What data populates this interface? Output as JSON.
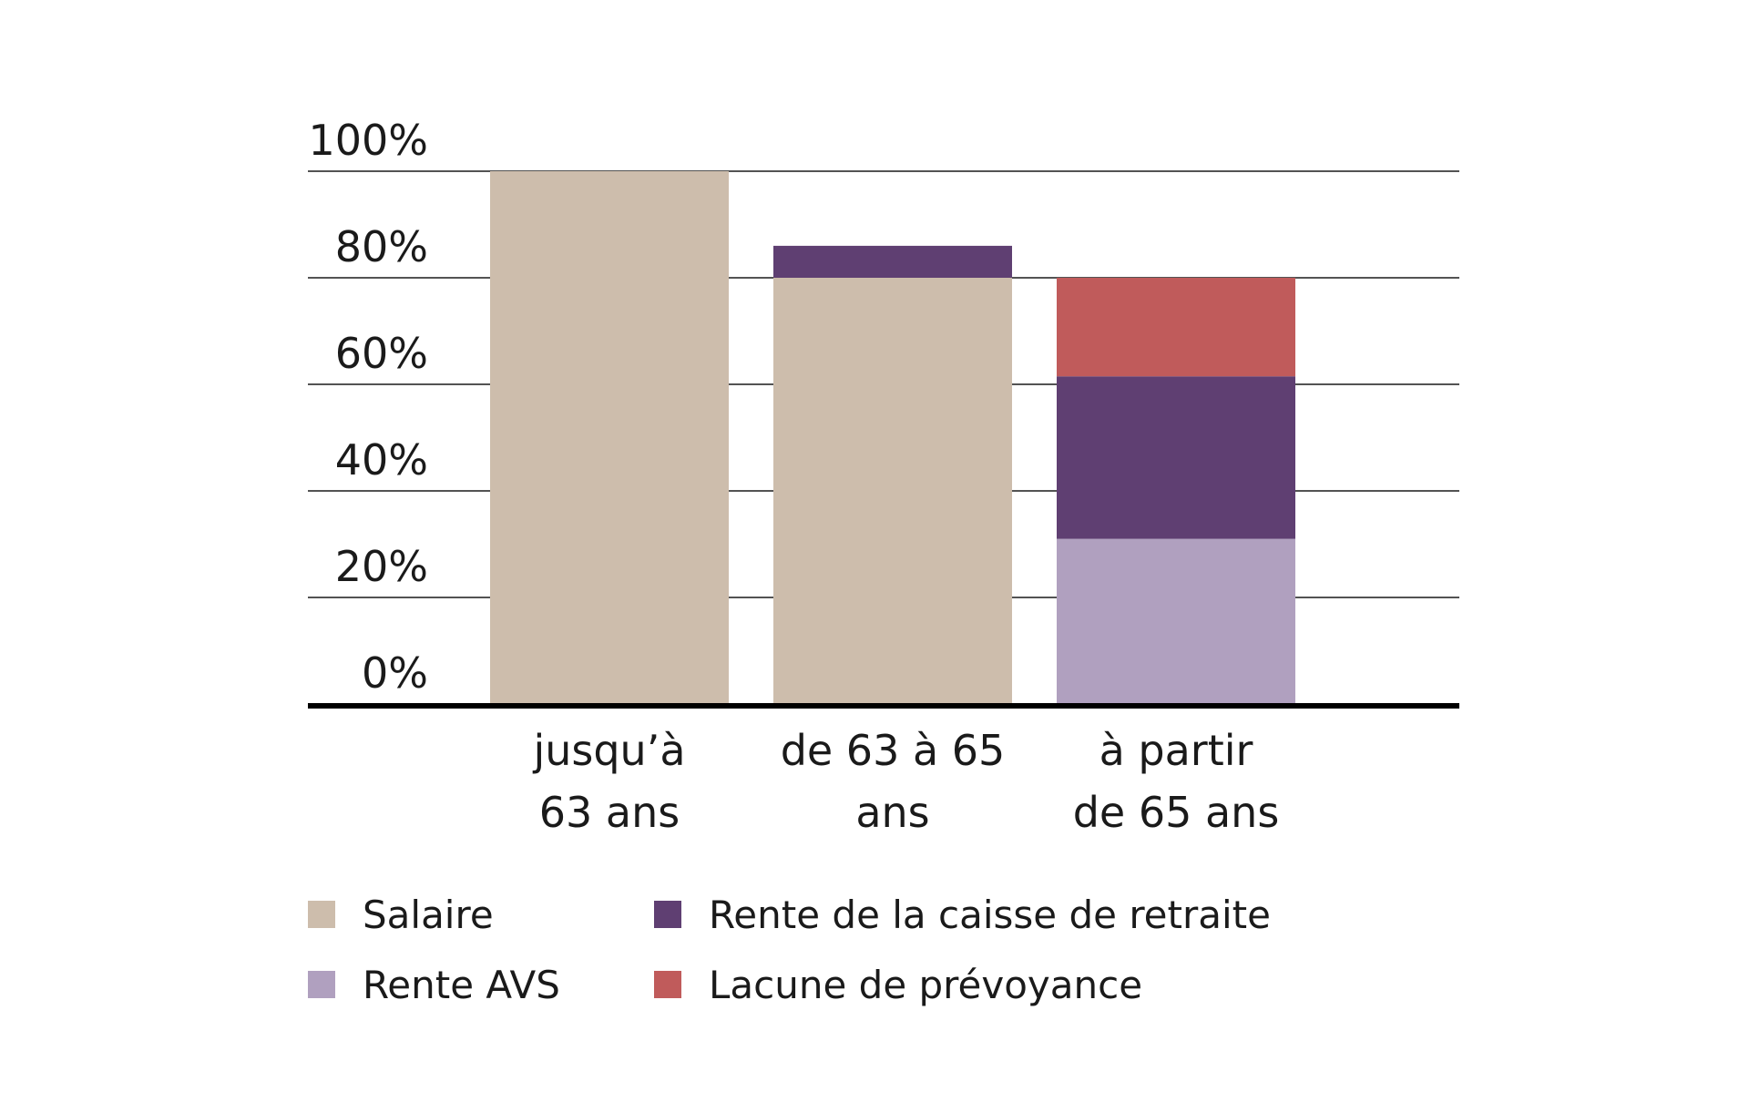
{
  "chart_data": {
    "type": "bar",
    "stacked": true,
    "categories": [
      [
        "jusqu’à",
        "63 ans"
      ],
      [
        "de 63 à 65",
        "ans"
      ],
      [
        "à partir",
        "de 65 ans"
      ]
    ],
    "series": [
      {
        "name": "Salaire",
        "color": "#cdbdac",
        "values": [
          100,
          80,
          0
        ]
      },
      {
        "name": "Rente AVS",
        "color": "#b0a0bf",
        "values": [
          0,
          0,
          31
        ]
      },
      {
        "name": "Rente de la caisse de retraite",
        "color": "#5f3f72",
        "values": [
          0,
          6,
          30.5
        ]
      },
      {
        "name": "Lacune de prévoyance",
        "color": "#c05b5b",
        "values": [
          0,
          0,
          18.5
        ]
      }
    ],
    "yticks": [
      "0%",
      "20%",
      "40%",
      "60%",
      "80%",
      "100%"
    ],
    "ylim": [
      0,
      100
    ],
    "grid": true,
    "legend_position": "bottom",
    "legend_order": [
      "Salaire",
      "Rente de la caisse de retraite",
      "Rente AVS",
      "Lacune de prévoyance"
    ]
  }
}
